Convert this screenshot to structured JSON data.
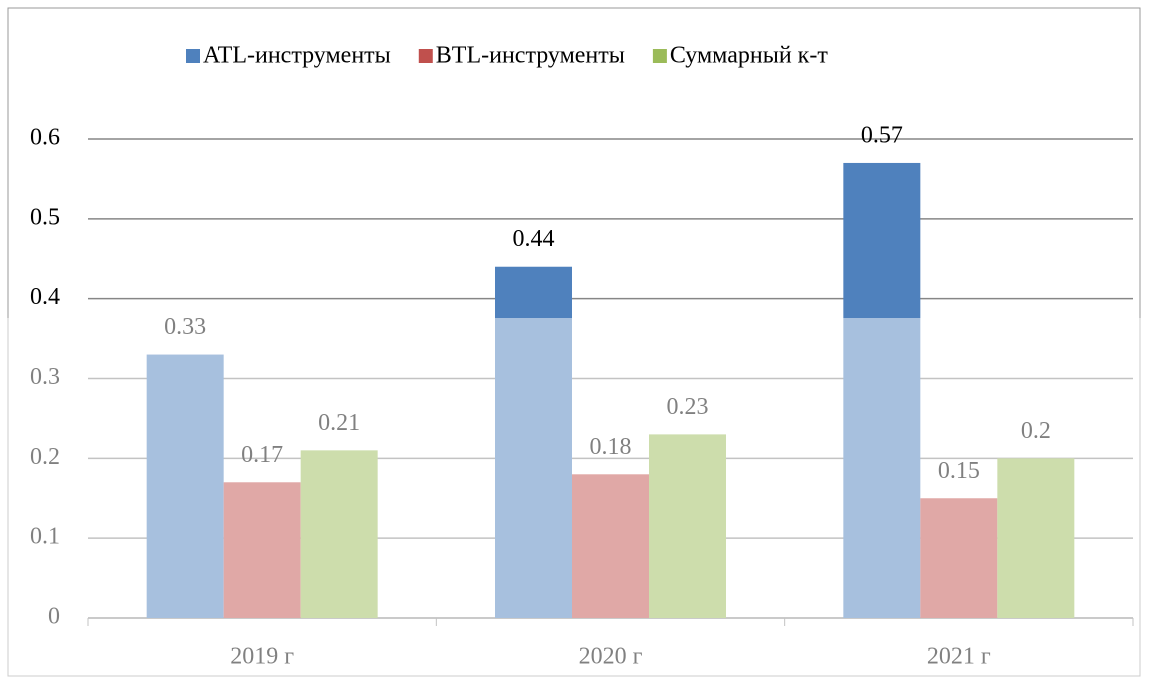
{
  "chart_data": {
    "type": "bar",
    "categories": [
      "2019 г",
      "2020 г",
      "2021 г"
    ],
    "series": [
      {
        "name": "ATL-инструменты",
        "color": "#4f81bd",
        "values": [
          0.33,
          0.44,
          0.57
        ]
      },
      {
        "name": "BTL-инструменты",
        "color": "#c0504d",
        "values": [
          0.17,
          0.18,
          0.15
        ]
      },
      {
        "name": "Суммарный к-т",
        "color": "#9bbb59",
        "values": [
          0.21,
          0.23,
          0.2
        ]
      }
    ],
    "ylim": [
      0,
      0.6
    ],
    "yticks": [
      0,
      0.1,
      0.2,
      0.3,
      0.4,
      0.5,
      0.6
    ],
    "grid": true,
    "legend": "top"
  }
}
